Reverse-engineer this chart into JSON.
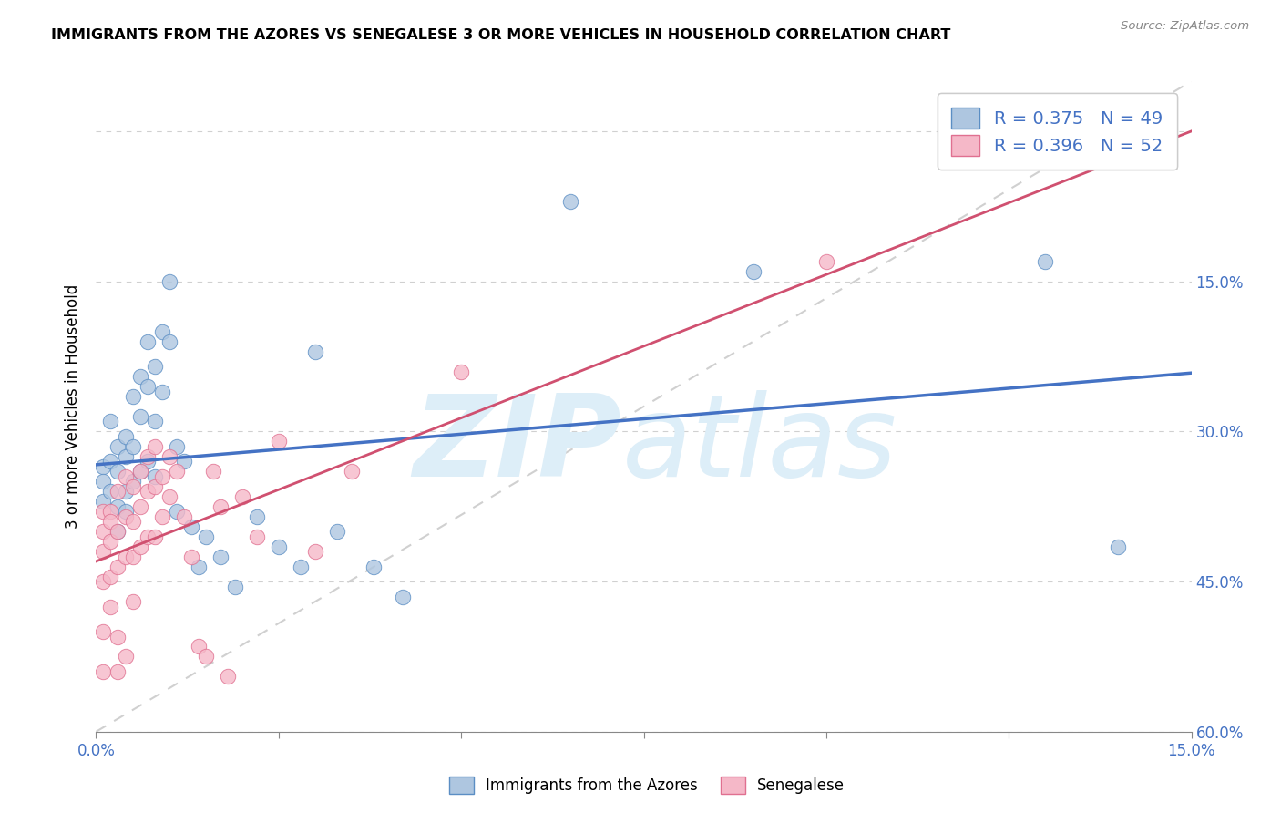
{
  "title": "IMMIGRANTS FROM THE AZORES VS SENEGALESE 3 OR MORE VEHICLES IN HOUSEHOLD CORRELATION CHART",
  "source": "Source: ZipAtlas.com",
  "ylabel": "3 or more Vehicles in Household",
  "xlim": [
    0.0,
    0.15
  ],
  "ylim": [
    0.0,
    0.65
  ],
  "xticks": [
    0.0,
    0.025,
    0.05,
    0.075,
    0.1,
    0.125,
    0.15
  ],
  "yticks": [
    0.0,
    0.15,
    0.3,
    0.45,
    0.6
  ],
  "legend_labels": [
    "Immigrants from the Azores",
    "Senegalese"
  ],
  "R_azores": 0.375,
  "N_azores": 49,
  "R_senegalese": 0.396,
  "N_senegalese": 52,
  "color_azores_fill": "#aec6e0",
  "color_azores_edge": "#5b8ec4",
  "color_senegalese_fill": "#f5b8c8",
  "color_senegalese_edge": "#e07090",
  "color_azores_line": "#4472c4",
  "color_senegalese_line": "#d05070",
  "color_diagonal": "#c8c8c8",
  "watermark_color": "#ddeeff",
  "legend_text_color": "#4472c4",
  "azores_x": [
    0.001,
    0.001,
    0.001,
    0.002,
    0.002,
    0.002,
    0.003,
    0.003,
    0.003,
    0.003,
    0.004,
    0.004,
    0.004,
    0.004,
    0.005,
    0.005,
    0.005,
    0.006,
    0.006,
    0.006,
    0.007,
    0.007,
    0.007,
    0.008,
    0.008,
    0.008,
    0.009,
    0.009,
    0.01,
    0.01,
    0.011,
    0.011,
    0.012,
    0.013,
    0.014,
    0.015,
    0.017,
    0.019,
    0.022,
    0.025,
    0.028,
    0.03,
    0.033,
    0.038,
    0.042,
    0.065,
    0.09,
    0.13,
    0.14
  ],
  "azores_y": [
    0.265,
    0.25,
    0.23,
    0.31,
    0.27,
    0.24,
    0.285,
    0.26,
    0.225,
    0.2,
    0.275,
    0.295,
    0.24,
    0.22,
    0.335,
    0.285,
    0.25,
    0.355,
    0.315,
    0.26,
    0.39,
    0.345,
    0.27,
    0.365,
    0.31,
    0.255,
    0.4,
    0.34,
    0.45,
    0.39,
    0.285,
    0.22,
    0.27,
    0.205,
    0.165,
    0.195,
    0.175,
    0.145,
    0.215,
    0.185,
    0.165,
    0.38,
    0.2,
    0.165,
    0.135,
    0.53,
    0.46,
    0.47,
    0.185
  ],
  "senegalese_x": [
    0.001,
    0.001,
    0.001,
    0.001,
    0.001,
    0.001,
    0.002,
    0.002,
    0.002,
    0.002,
    0.002,
    0.003,
    0.003,
    0.003,
    0.003,
    0.003,
    0.004,
    0.004,
    0.004,
    0.004,
    0.005,
    0.005,
    0.005,
    0.005,
    0.006,
    0.006,
    0.006,
    0.007,
    0.007,
    0.007,
    0.008,
    0.008,
    0.008,
    0.009,
    0.009,
    0.01,
    0.01,
    0.011,
    0.012,
    0.013,
    0.014,
    0.015,
    0.016,
    0.017,
    0.018,
    0.02,
    0.022,
    0.025,
    0.03,
    0.035,
    0.05,
    0.1
  ],
  "senegalese_y": [
    0.2,
    0.22,
    0.18,
    0.15,
    0.1,
    0.06,
    0.22,
    0.19,
    0.155,
    0.21,
    0.125,
    0.24,
    0.2,
    0.165,
    0.095,
    0.06,
    0.255,
    0.215,
    0.175,
    0.075,
    0.245,
    0.21,
    0.175,
    0.13,
    0.26,
    0.225,
    0.185,
    0.275,
    0.24,
    0.195,
    0.285,
    0.245,
    0.195,
    0.255,
    0.215,
    0.275,
    0.235,
    0.26,
    0.215,
    0.175,
    0.085,
    0.075,
    0.26,
    0.225,
    0.055,
    0.235,
    0.195,
    0.29,
    0.18,
    0.26,
    0.36,
    0.47
  ]
}
